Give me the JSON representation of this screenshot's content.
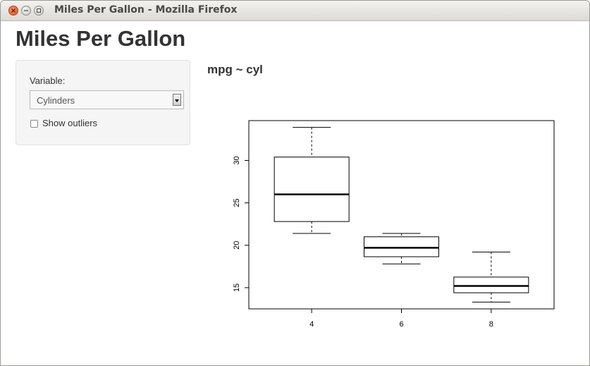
{
  "window": {
    "title": "Miles Per Gallon - Mozilla Firefox"
  },
  "page": {
    "title": "Miles Per Gallon"
  },
  "sidebar": {
    "variable_label": "Variable:",
    "select": {
      "value": "Cylinders"
    },
    "checkbox": {
      "label": "Show outliers",
      "checked": false
    }
  },
  "chart_caption": "mpg ~ cyl",
  "chart_data": {
    "type": "boxplot",
    "categories": [
      "4",
      "6",
      "8"
    ],
    "boxes": [
      {
        "category": "4",
        "min": 21.4,
        "q1": 22.8,
        "median": 26.0,
        "q3": 30.4,
        "max": 33.9
      },
      {
        "category": "6",
        "min": 17.8,
        "q1": 18.65,
        "median": 19.7,
        "q3": 21.0,
        "max": 21.4
      },
      {
        "category": "8",
        "min": 13.3,
        "q1": 14.4,
        "median": 15.2,
        "q3": 16.25,
        "max": 19.2
      }
    ],
    "yticks": [
      15,
      20,
      25,
      30
    ],
    "ylim": [
      12.5,
      34.7
    ],
    "xlabel": "",
    "ylabel": "",
    "grid": false
  }
}
